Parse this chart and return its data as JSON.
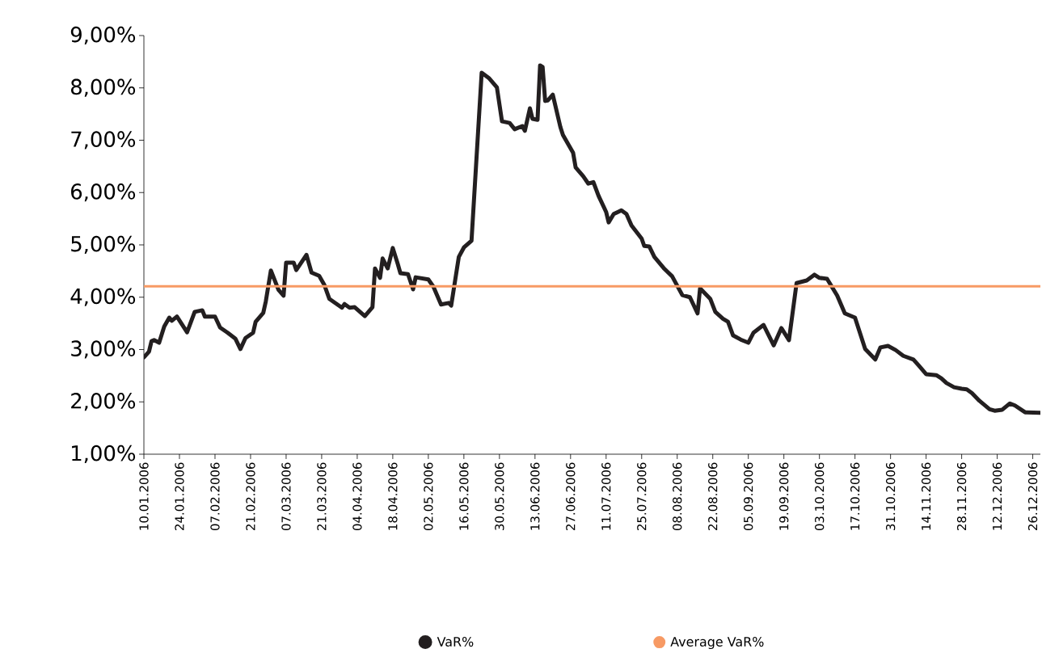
{
  "chart_data": {
    "type": "line",
    "legend": "bottom",
    "marker": "none",
    "line_style": "solid",
    "xlim": [
      "2006-01-10",
      "2006-12-29"
    ],
    "xticks": [
      {
        "value": "2006-01-10",
        "label": "10.01.2006"
      },
      {
        "value": "2006-01-24",
        "label": "24.01.2006"
      },
      {
        "value": "2006-02-07",
        "label": "07.02.2006"
      },
      {
        "value": "2006-02-21",
        "label": "21.02.2006"
      },
      {
        "value": "2006-03-07",
        "label": "07.03.2006"
      },
      {
        "value": "2006-03-21",
        "label": "21.03.2006"
      },
      {
        "value": "2006-04-04",
        "label": "04.04.2006"
      },
      {
        "value": "2006-04-18",
        "label": "18.04.2006"
      },
      {
        "value": "2006-05-02",
        "label": "02.05.2006"
      },
      {
        "value": "2006-05-16",
        "label": "16.05.2006"
      },
      {
        "value": "2006-05-30",
        "label": "30.05.2006"
      },
      {
        "value": "2006-06-13",
        "label": "13.06.2006"
      },
      {
        "value": "2006-06-27",
        "label": "27.06.2006"
      },
      {
        "value": "2006-07-11",
        "label": "11.07.2006"
      },
      {
        "value": "2006-07-25",
        "label": "25.07.2006"
      },
      {
        "value": "2006-08-08",
        "label": "08.08.2006"
      },
      {
        "value": "2006-08-22",
        "label": "22.08.2006"
      },
      {
        "value": "2006-09-05",
        "label": "05.09.2006"
      },
      {
        "value": "2006-09-19",
        "label": "19.09.2006"
      },
      {
        "value": "2006-10-03",
        "label": "03.10.2006"
      },
      {
        "value": "2006-10-17",
        "label": "17.10.2006"
      },
      {
        "value": "2006-10-31",
        "label": "31.10.2006"
      },
      {
        "value": "2006-11-14",
        "label": "14.11.2006"
      },
      {
        "value": "2006-11-28",
        "label": "28.11.2006"
      },
      {
        "value": "2006-12-12",
        "label": "12.12.2006"
      },
      {
        "value": "2006-12-26",
        "label": "26.12.2006"
      }
    ],
    "ylim": [
      1,
      9
    ],
    "yticks": [
      {
        "value": 1,
        "label": "1,00%"
      },
      {
        "value": 2,
        "label": "2,00%"
      },
      {
        "value": 3,
        "label": "3,00%"
      },
      {
        "value": 4,
        "label": "4,00%"
      },
      {
        "value": 5,
        "label": "5,00%"
      },
      {
        "value": 6,
        "label": "6,00%"
      },
      {
        "value": 7,
        "label": "7,00%"
      },
      {
        "value": 8,
        "label": "8,00%"
      },
      {
        "value": 9,
        "label": "9,00%"
      }
    ],
    "series": [
      {
        "name": "VaR%",
        "color": "#231f20",
        "x": [
          "2006-01-10",
          "2006-01-12",
          "2006-01-13",
          "2006-01-14",
          "2006-01-16",
          "2006-01-18",
          "2006-01-20",
          "2006-01-21",
          "2006-01-23",
          "2006-01-27",
          "2006-01-30",
          "2006-02-02",
          "2006-02-03",
          "2006-02-07",
          "2006-02-09",
          "2006-02-12",
          "2006-02-15",
          "2006-02-17",
          "2006-02-19",
          "2006-02-22",
          "2006-02-23",
          "2006-02-26",
          "2006-02-27",
          "2006-03-01",
          "2006-03-04",
          "2006-03-06",
          "2006-03-07",
          "2006-03-10",
          "2006-03-11",
          "2006-03-15",
          "2006-03-17",
          "2006-03-20",
          "2006-03-22",
          "2006-03-24",
          "2006-03-29",
          "2006-03-30",
          "2006-04-01",
          "2006-04-03",
          "2006-04-07",
          "2006-04-10",
          "2006-04-11",
          "2006-04-13",
          "2006-04-14",
          "2006-04-16",
          "2006-04-18",
          "2006-04-20",
          "2006-04-21",
          "2006-04-24",
          "2006-04-26",
          "2006-04-27",
          "2006-05-02",
          "2006-05-04",
          "2006-05-07",
          "2006-05-10",
          "2006-05-11",
          "2006-05-14",
          "2006-05-16",
          "2006-05-19",
          "2006-05-23",
          "2006-05-26",
          "2006-05-29",
          "2006-05-31",
          "2006-06-03",
          "2006-06-05",
          "2006-06-08",
          "2006-06-09",
          "2006-06-11",
          "2006-06-12",
          "2006-06-14",
          "2006-06-15",
          "2006-06-16",
          "2006-06-17",
          "2006-06-18",
          "2006-06-20",
          "2006-06-23",
          "2006-06-24",
          "2006-06-28",
          "2006-06-29",
          "2006-07-02",
          "2006-07-04",
          "2006-07-06",
          "2006-07-08",
          "2006-07-11",
          "2006-07-12",
          "2006-07-14",
          "2006-07-17",
          "2006-07-19",
          "2006-07-21",
          "2006-07-25",
          "2006-07-26",
          "2006-07-28",
          "2006-07-30",
          "2006-08-03",
          "2006-08-06",
          "2006-08-10",
          "2006-08-13",
          "2006-08-16",
          "2006-08-17",
          "2006-08-21",
          "2006-08-23",
          "2006-08-26",
          "2006-08-28",
          "2006-08-30",
          "2006-09-02",
          "2006-09-05",
          "2006-09-07",
          "2006-09-11",
          "2006-09-15",
          "2006-09-18",
          "2006-09-21",
          "2006-09-24",
          "2006-09-28",
          "2006-10-01",
          "2006-10-03",
          "2006-10-06",
          "2006-10-10",
          "2006-10-13",
          "2006-10-17",
          "2006-10-21",
          "2006-10-25",
          "2006-10-27",
          "2006-10-30",
          "2006-11-02",
          "2006-11-05",
          "2006-11-09",
          "2006-11-11",
          "2006-11-14",
          "2006-11-18",
          "2006-11-20",
          "2006-11-22",
          "2006-11-25",
          "2006-11-28",
          "2006-11-30",
          "2006-12-02",
          "2006-12-05",
          "2006-12-09",
          "2006-12-11",
          "2006-12-14",
          "2006-12-17",
          "2006-12-19",
          "2006-12-23",
          "2006-12-29"
        ],
        "values": [
          2.85,
          2.96,
          3.16,
          3.18,
          3.13,
          3.44,
          3.61,
          3.55,
          3.63,
          3.33,
          3.72,
          3.75,
          3.63,
          3.63,
          3.42,
          3.32,
          3.21,
          3.01,
          3.22,
          3.32,
          3.53,
          3.7,
          3.92,
          4.51,
          4.14,
          4.03,
          4.66,
          4.66,
          4.52,
          4.81,
          4.47,
          4.41,
          4.24,
          3.97,
          3.8,
          3.87,
          3.8,
          3.81,
          3.64,
          3.81,
          4.55,
          4.37,
          4.74,
          4.55,
          4.94,
          4.63,
          4.46,
          4.44,
          4.15,
          4.38,
          4.34,
          4.2,
          3.86,
          3.89,
          3.84,
          4.77,
          4.95,
          5.08,
          8.29,
          8.18,
          8.01,
          7.36,
          7.33,
          7.21,
          7.27,
          7.18,
          7.61,
          7.41,
          7.39,
          8.43,
          8.4,
          7.75,
          7.76,
          7.87,
          7.25,
          7.1,
          6.76,
          6.48,
          6.31,
          6.17,
          6.2,
          5.94,
          5.63,
          5.43,
          5.59,
          5.66,
          5.59,
          5.37,
          5.12,
          4.98,
          4.97,
          4.77,
          4.54,
          4.4,
          4.04,
          4.0,
          3.69,
          4.17,
          3.97,
          3.72,
          3.59,
          3.53,
          3.27,
          3.19,
          3.13,
          3.32,
          3.47,
          3.08,
          3.41,
          3.18,
          4.27,
          4.32,
          4.43,
          4.37,
          4.35,
          4.03,
          3.69,
          3.61,
          3.01,
          2.81,
          3.04,
          3.07,
          2.99,
          2.88,
          2.81,
          2.7,
          2.53,
          2.51,
          2.45,
          2.36,
          2.28,
          2.25,
          2.24,
          2.17,
          2.02,
          1.86,
          1.83,
          1.85,
          1.97,
          1.93,
          1.8,
          1.79
        ]
      },
      {
        "name": "Average VaR%",
        "color": "#f79a64",
        "x": [
          "2006-01-10",
          "2006-12-29"
        ],
        "values": [
          4.21,
          4.21
        ]
      }
    ]
  }
}
